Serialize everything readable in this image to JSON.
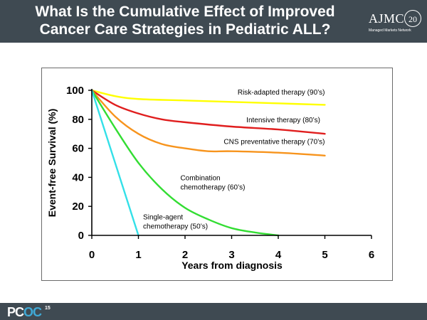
{
  "header": {
    "title_line1": "What Is the Cumulative Effect of Improved",
    "title_line2": "Cancer Care Strategies in Pediatric ALL?"
  },
  "logo": {
    "text": "AJMC",
    "badge": "20",
    "subtitle": "Managed Markets Network"
  },
  "footer": {
    "logo_part1": "PC",
    "logo_part2": "OC",
    "logo_superscript": "15"
  },
  "colors": {
    "header_bg": "#3f4a52",
    "series_yellow": "#ffff00",
    "series_red": "#e01e1e",
    "series_orange": "#f7941d",
    "series_green": "#33dd33",
    "series_cyan": "#33e0e8"
  },
  "chart_data": {
    "type": "line",
    "title": "",
    "xlabel": "Years from diagnosis",
    "ylabel": "Event-free Survival (%)",
    "xlim": [
      0,
      6
    ],
    "ylim": [
      0,
      100
    ],
    "xticks": [
      0,
      1,
      2,
      3,
      4,
      5,
      6
    ],
    "yticks": [
      0,
      20,
      40,
      60,
      80,
      100
    ],
    "grid": false,
    "series": [
      {
        "name": "Risk-adapted therapy (90’s)",
        "color": "#ffff00",
        "x": [
          0,
          0.5,
          1,
          2,
          3,
          4,
          5
        ],
        "y": [
          100,
          96,
          94,
          93,
          92,
          91,
          90
        ]
      },
      {
        "name": "Intensive therapy (80’s)",
        "color": "#e01e1e",
        "x": [
          0,
          0.5,
          1,
          1.5,
          2,
          3,
          4,
          5
        ],
        "y": [
          100,
          90,
          84,
          80,
          78,
          75,
          73,
          70
        ]
      },
      {
        "name": "CNS preventative therapy (70’s)",
        "color": "#f7941d",
        "x": [
          0,
          0.5,
          1,
          1.5,
          2,
          2.5,
          3,
          4,
          5
        ],
        "y": [
          100,
          82,
          70,
          63,
          60,
          58,
          58,
          57,
          55
        ]
      },
      {
        "name": "Combination chemotherapy (60’s)",
        "color": "#33dd33",
        "x": [
          0,
          0.5,
          1,
          1.5,
          2,
          2.5,
          3,
          3.5,
          4
        ],
        "y": [
          100,
          74,
          50,
          32,
          19,
          11,
          5,
          2,
          0
        ]
      },
      {
        "name": "Single-agent chemotherapy (50’s)",
        "color": "#33e0e8",
        "x": [
          0,
          1
        ],
        "y": [
          100,
          0
        ]
      }
    ],
    "annotations": [
      {
        "series": 0,
        "lines": [
          "Risk-adapted therapy (90’s)"
        ],
        "x": 5.0,
        "y": 97,
        "anchor": "end"
      },
      {
        "series": 1,
        "lines": [
          "Intensive therapy (80’s)"
        ],
        "x": 4.9,
        "y": 78,
        "anchor": "end"
      },
      {
        "series": 2,
        "lines": [
          "CNS preventative therapy (70’s)"
        ],
        "x": 5.0,
        "y": 63,
        "anchor": "end"
      },
      {
        "series": 3,
        "lines": [
          "Combination",
          "chemotherapy (60’s)"
        ],
        "x": 1.9,
        "y": 38,
        "anchor": "start"
      },
      {
        "series": 4,
        "lines": [
          "Single-agent",
          "chemotherapy (50’s)"
        ],
        "x": 1.1,
        "y": 11,
        "anchor": "start"
      }
    ]
  }
}
